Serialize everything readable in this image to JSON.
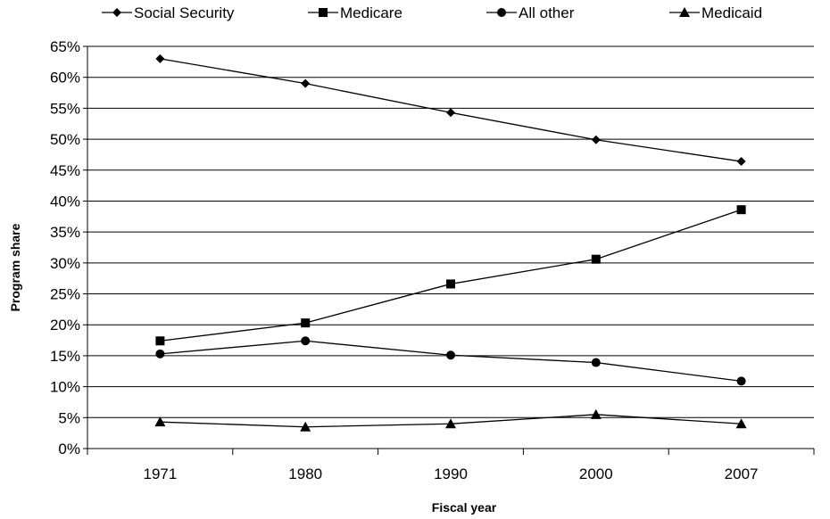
{
  "chart_data": {
    "type": "line",
    "xlabel": "Fiscal year",
    "ylabel": "Program share",
    "categories": [
      "1971",
      "1980",
      "1990",
      "2000",
      "2007"
    ],
    "ylim": [
      0,
      65
    ],
    "yticks": [
      "0%",
      "5%",
      "10%",
      "15%",
      "20%",
      "25%",
      "30%",
      "35%",
      "40%",
      "45%",
      "50%",
      "55%",
      "60%",
      "65%"
    ],
    "grid": "horizontal",
    "legend_position": "top",
    "series": [
      {
        "name": "Social Security",
        "marker": "diamond",
        "values": [
          63.0,
          59.0,
          54.3,
          49.9,
          46.4
        ]
      },
      {
        "name": "Medicare",
        "marker": "square",
        "values": [
          17.4,
          20.3,
          26.6,
          30.6,
          38.6
        ]
      },
      {
        "name": "All other",
        "marker": "circle",
        "values": [
          15.3,
          17.4,
          15.1,
          13.9,
          10.9
        ]
      },
      {
        "name": "Medicaid",
        "marker": "triangle",
        "values": [
          4.3,
          3.5,
          4.0,
          5.5,
          4.0
        ]
      }
    ]
  }
}
